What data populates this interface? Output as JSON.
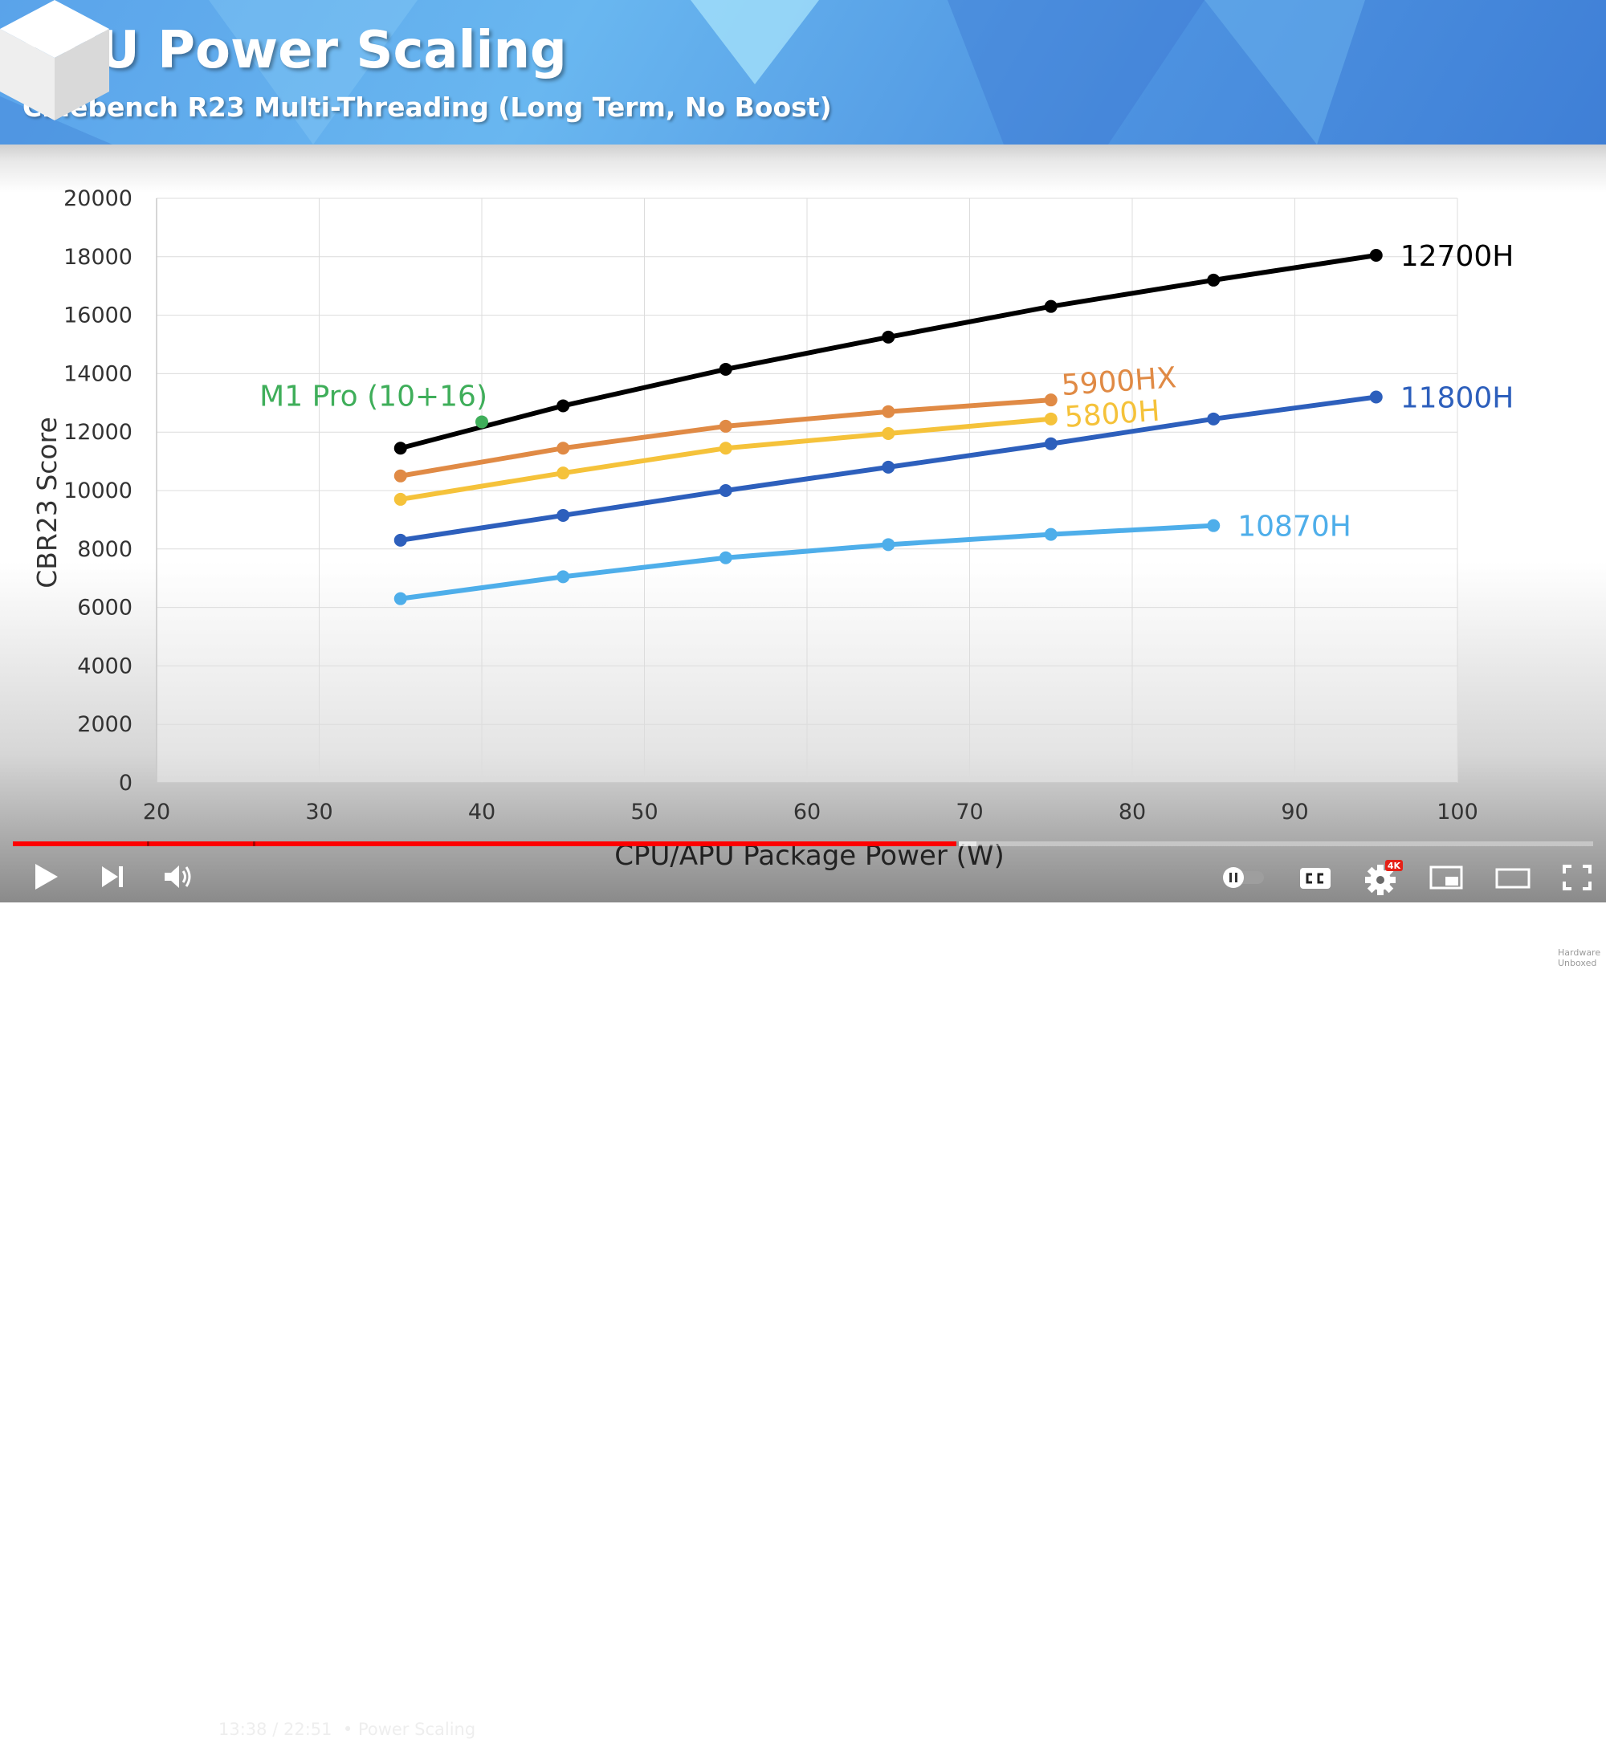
{
  "banner": {
    "title": "CPU Power Scaling",
    "subtitle": "Cinebench R23 Multi-Threading (Long Term, No Boost)"
  },
  "watermark": "Hardware Unboxed",
  "chart_data": {
    "type": "line",
    "xlabel": "CPU/APU Package Power (W)",
    "ylabel": "CBR23 Score",
    "xlim": [
      20,
      100
    ],
    "ylim": [
      0,
      20000
    ],
    "x_ticks": [
      "20",
      "30",
      "40",
      "50",
      "60",
      "70",
      "80",
      "90",
      "100"
    ],
    "y_ticks": [
      "0",
      "2000",
      "4000",
      "6000",
      "8000",
      "10000",
      "12000",
      "14000",
      "16000",
      "18000",
      "20000"
    ],
    "grid": true,
    "legend": "inline labels at series ends",
    "series": [
      {
        "name": "12700H",
        "color": "#000000",
        "x": [
          35,
          45,
          55,
          65,
          75,
          85,
          95
        ],
        "y": [
          11450,
          12900,
          14150,
          15250,
          16300,
          17200,
          18050
        ]
      },
      {
        "name": "5900HX",
        "color": "#e08a45",
        "x": [
          35,
          45,
          55,
          65,
          75
        ],
        "y": [
          10500,
          11450,
          12200,
          12700,
          13100
        ]
      },
      {
        "name": "5800H",
        "color": "#f5c23a",
        "x": [
          35,
          45,
          55,
          65,
          75
        ],
        "y": [
          9700,
          10600,
          11450,
          11950,
          12450
        ]
      },
      {
        "name": "11800H",
        "color": "#2d5fbc",
        "x": [
          35,
          45,
          55,
          65,
          75,
          85,
          95
        ],
        "y": [
          8300,
          9150,
          10000,
          10800,
          11600,
          12450,
          13200
        ]
      },
      {
        "name": "10870H",
        "color": "#4eaeea",
        "x": [
          35,
          45,
          55,
          65,
          75,
          85
        ],
        "y": [
          6300,
          7050,
          7700,
          8150,
          8500,
          8800
        ]
      }
    ],
    "annotations": [
      {
        "name": "M1 Pro (10+16)",
        "color": "#3fae5a",
        "x": 40,
        "y": 12350
      }
    ]
  },
  "player": {
    "current_time": "13:38",
    "duration": "22:51",
    "separator": "/",
    "chapter_bullet": "•",
    "chapter": "Power Scaling",
    "progress_fraction": 0.597,
    "buffered_fraction": 0.61,
    "chapter_marks": [
      0.085,
      0.152,
      0.597
    ],
    "settings_badge": "4K",
    "icons": {
      "play": "play-icon",
      "next": "next-icon",
      "volume": "volume-icon",
      "chevron": "chevron-right-icon",
      "autoplay": "autoplay-toggle-icon",
      "captions": "captions-icon",
      "settings": "gear-icon",
      "miniplayer": "miniplayer-icon",
      "theater": "theater-icon",
      "fullscreen": "fullscreen-icon"
    }
  }
}
